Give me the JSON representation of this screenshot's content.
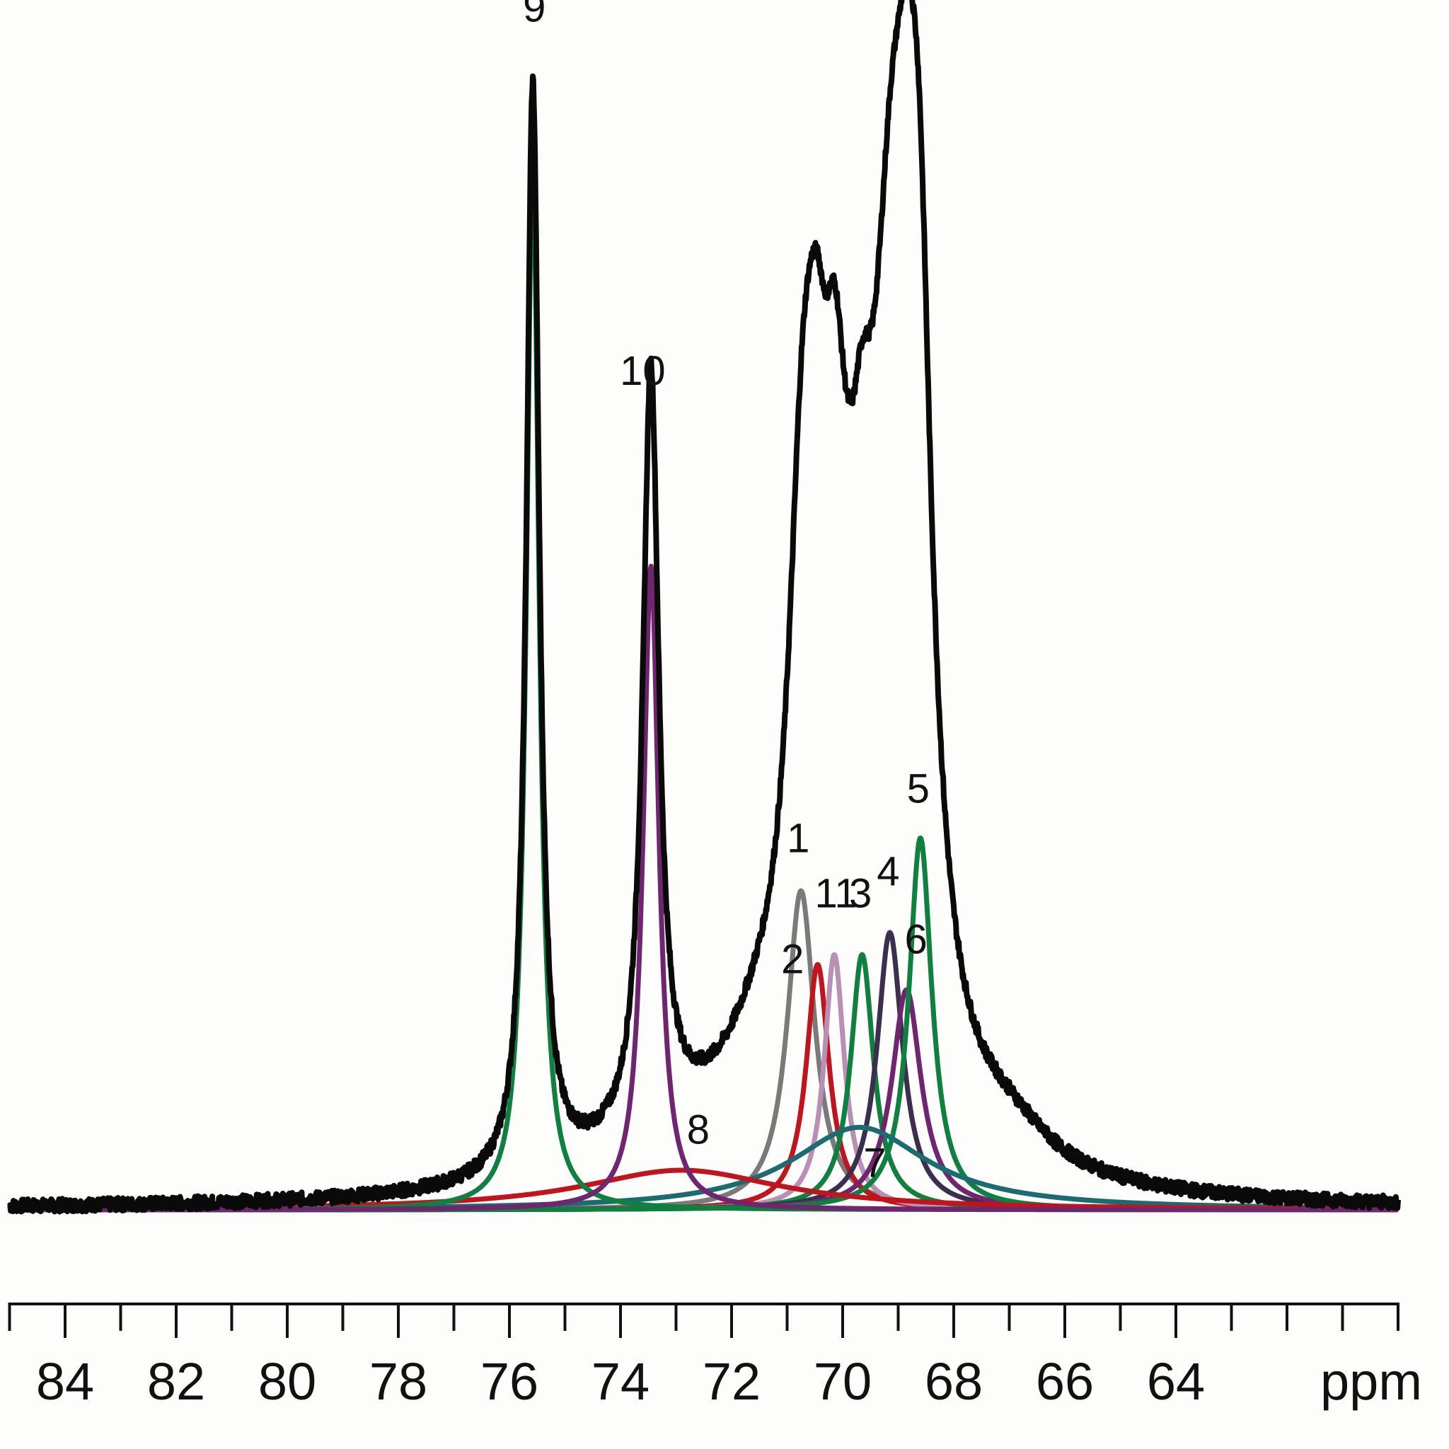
{
  "chart_data": {
    "type": "line",
    "title": "",
    "xlabel": "ppm",
    "ylabel": "",
    "x_axis": {
      "unit": "ppm",
      "reversed": true,
      "range": [
        85,
        60
      ],
      "major_ticks": [
        84,
        82,
        80,
        78,
        76,
        74,
        72,
        70,
        68,
        66,
        64
      ],
      "tick_labels": [
        "84",
        "82",
        "80",
        "78",
        "76",
        "74",
        "72",
        "70",
        "68",
        "66",
        "64"
      ],
      "minor_ticks": [
        85,
        83,
        81,
        79,
        77,
        75,
        73,
        71,
        69,
        67,
        65,
        63,
        62,
        61,
        60
      ]
    },
    "y_axis": {
      "visible": false,
      "range": [
        0,
        1.0
      ]
    },
    "grid": false,
    "legend": "none",
    "baseline_ppm_range": [
      85,
      60
    ],
    "experimental_spectrum": {
      "color": "#0a0a0a",
      "peaks_ppm": [
        75.55,
        73.48,
        70.55,
        70.05,
        69.6,
        68.85
      ],
      "max_intensities": [
        1.0,
        0.695,
        0.785,
        0.78,
        0.655,
        0.9
      ]
    },
    "components": [
      {
        "label": "1",
        "center": 70.75,
        "height": 0.29,
        "width": 0.3,
        "color": "#7a7a7a"
      },
      {
        "label": "2",
        "center": 70.45,
        "height": 0.223,
        "width": 0.25,
        "color": "#c0141e"
      },
      {
        "label": "11",
        "center": 70.15,
        "height": 0.232,
        "width": 0.22,
        "color": "#b98fb3"
      },
      {
        "label": "3",
        "center": 69.65,
        "height": 0.232,
        "width": 0.25,
        "color": "#0f8040"
      },
      {
        "label": "4",
        "center": 69.15,
        "height": 0.252,
        "width": 0.28,
        "color": "#3b2f4d"
      },
      {
        "label": "6",
        "center": 68.85,
        "height": 0.2,
        "width": 0.32,
        "color": "#70266f"
      },
      {
        "label": "5",
        "center": 68.6,
        "height": 0.338,
        "width": 0.25,
        "color": "#0f8040"
      },
      {
        "label": "7",
        "center": 69.7,
        "height": 0.075,
        "width": 1.5,
        "color": "#1c6b70"
      },
      {
        "label": "8",
        "center": 72.9,
        "height": 0.036,
        "width": 2.2,
        "color": "#c0141e"
      },
      {
        "label": "9",
        "center": 75.58,
        "height": 0.945,
        "width": 0.14,
        "color": "#0f8040"
      },
      {
        "label": "10",
        "center": 73.45,
        "height": 0.585,
        "width": 0.17,
        "color": "#70266f"
      }
    ],
    "annotations": [
      {
        "text": "9",
        "ppm": 75.55,
        "intensity": 1.08
      },
      {
        "text": "10",
        "ppm": 73.6,
        "intensity": 0.75
      },
      {
        "text": "1",
        "ppm": 70.8,
        "intensity": 0.325
      },
      {
        "text": "2",
        "ppm": 70.9,
        "intensity": 0.215
      },
      {
        "text": "11",
        "ppm": 70.12,
        "intensity": 0.275
      },
      {
        "text": "3",
        "ppm": 69.68,
        "intensity": 0.275
      },
      {
        "text": "4",
        "ppm": 69.18,
        "intensity": 0.295
      },
      {
        "text": "6",
        "ppm": 68.68,
        "intensity": 0.233
      },
      {
        "text": "5",
        "ppm": 68.64,
        "intensity": 0.37
      },
      {
        "text": "8",
        "ppm": 72.6,
        "intensity": 0.06
      },
      {
        "text": "7",
        "ppm": 69.42,
        "intensity": 0.03
      }
    ]
  }
}
